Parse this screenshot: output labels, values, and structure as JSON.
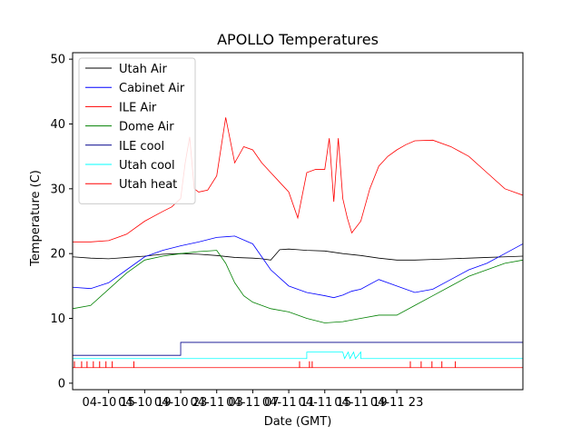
{
  "chart_data": {
    "type": "line",
    "title": "APOLLO Temperatures",
    "xlabel": "Date (GMT)",
    "ylabel": "Temperature (C)",
    "x_unit": "hours since 2010-04-10 11:00 GMT",
    "xlim": [
      0,
      50
    ],
    "ylim": [
      -1,
      51
    ],
    "yticks": [
      0,
      10,
      20,
      30,
      40,
      50
    ],
    "xticks": [
      {
        "x": 4,
        "label": "04-10 15"
      },
      {
        "x": 8,
        "label": "04-10 19"
      },
      {
        "x": 12,
        "label": "04-10 23"
      },
      {
        "x": 16,
        "label": "04-11 03"
      },
      {
        "x": 20,
        "label": "04-11 07"
      },
      {
        "x": 24,
        "label": "04-11 11"
      },
      {
        "x": 28,
        "label": "04-11 15"
      },
      {
        "x": 32,
        "label": "04-11 19"
      },
      {
        "x": 36,
        "label": "04-11 23"
      }
    ],
    "x_axis_note": "tick label spacing as printed",
    "legend_position": "upper-left",
    "series": [
      {
        "name": "Utah Air",
        "color": "#000000",
        "x": [
          0,
          2,
          4,
          6,
          8,
          10,
          12,
          14,
          16,
          18,
          20,
          21,
          22,
          23,
          24,
          25,
          26,
          28,
          30,
          32,
          34,
          36,
          38,
          40,
          42,
          44,
          46,
          48,
          50
        ],
        "y": [
          19.5,
          19.3,
          19.2,
          19.4,
          19.6,
          19.9,
          20.0,
          19.9,
          19.7,
          19.4,
          19.3,
          19.2,
          19.0,
          20.6,
          20.7,
          20.6,
          20.5,
          20.4,
          20.0,
          19.7,
          19.3,
          19.0,
          19.0,
          19.1,
          19.2,
          19.3,
          19.4,
          19.5,
          19.6
        ]
      },
      {
        "name": "Cabinet Air",
        "color": "#0000ff",
        "x": [
          0,
          2,
          4,
          6,
          8,
          10,
          12,
          14,
          16,
          18,
          20,
          22,
          24,
          26,
          28,
          29,
          30,
          31,
          32,
          34,
          36,
          38,
          40,
          42,
          44,
          46,
          48,
          50
        ],
        "y": [
          14.8,
          14.6,
          15.5,
          17.5,
          19.5,
          20.5,
          21.2,
          21.8,
          22.5,
          22.7,
          21.5,
          17.5,
          15.0,
          14.0,
          13.5,
          13.2,
          13.6,
          14.2,
          14.5,
          16.0,
          15.0,
          14.0,
          14.5,
          16.0,
          17.5,
          18.5,
          20.0,
          21.5
        ]
      },
      {
        "name": "ILE Air",
        "color": "#ff0000",
        "x": [
          0,
          2,
          4,
          6,
          8,
          10,
          11,
          12,
          12.5,
          13,
          13.5,
          14,
          15,
          16,
          17,
          18,
          19,
          20,
          20.5,
          21,
          22,
          23,
          24,
          25,
          26,
          27,
          28,
          28.5,
          29,
          29.5,
          30,
          30.5,
          31,
          32,
          33,
          34,
          35,
          36,
          37,
          38,
          40,
          42,
          44,
          46,
          48,
          50
        ],
        "y": [
          21.8,
          21.8,
          22.0,
          23.0,
          25.0,
          26.5,
          27.2,
          28.5,
          34.0,
          38.0,
          30.0,
          29.5,
          29.8,
          32.0,
          41.0,
          34.0,
          36.5,
          36.0,
          35.0,
          34.0,
          32.5,
          31.0,
          29.5,
          25.5,
          32.5,
          33.0,
          33.0,
          37.8,
          28.0,
          37.8,
          28.5,
          25.5,
          23.2,
          25.0,
          30.0,
          33.5,
          35.0,
          36.0,
          36.8,
          37.4,
          37.5,
          36.5,
          35.0,
          32.5,
          30.0,
          29.0
        ]
      },
      {
        "name": "Dome Air",
        "color": "#008000",
        "x": [
          0,
          2,
          4,
          6,
          8,
          10,
          12,
          14,
          16,
          17,
          18,
          19,
          20,
          22,
          24,
          26,
          28,
          30,
          32,
          34,
          36,
          38,
          40,
          42,
          44,
          46,
          48,
          50
        ],
        "y": [
          11.5,
          12.0,
          14.5,
          17.0,
          19.0,
          19.6,
          20.0,
          20.3,
          20.5,
          18.5,
          15.5,
          13.5,
          12.5,
          11.5,
          11.0,
          10.0,
          9.3,
          9.5,
          10.0,
          10.5,
          10.5,
          12.0,
          13.5,
          15.0,
          16.5,
          17.5,
          18.5,
          19.0
        ]
      },
      {
        "name": "ILE cool",
        "color": "#00008b",
        "x": [
          0,
          12,
          12,
          50
        ],
        "y": [
          4.3,
          4.3,
          6.3,
          6.3
        ]
      },
      {
        "name": "Utah cool",
        "color": "#00ffff",
        "x": [
          0,
          26,
          26,
          30,
          30.2,
          30.6,
          30.8,
          31.2,
          31.4,
          32,
          32,
          50
        ],
        "y": [
          3.8,
          3.8,
          4.8,
          4.8,
          3.8,
          4.8,
          3.8,
          4.8,
          3.8,
          4.8,
          3.8,
          3.8
        ]
      },
      {
        "name": "Utah heat",
        "color": "#ff0000",
        "x": [
          0,
          50
        ],
        "y": [
          2.4,
          2.4
        ],
        "pulses_at_x": [
          0.2,
          1,
          1.6,
          2.3,
          3,
          3.7,
          4.4,
          6.8,
          25.2,
          26.3,
          26.6,
          37.5,
          38.7,
          39.9,
          41,
          42.5
        ]
      }
    ]
  }
}
